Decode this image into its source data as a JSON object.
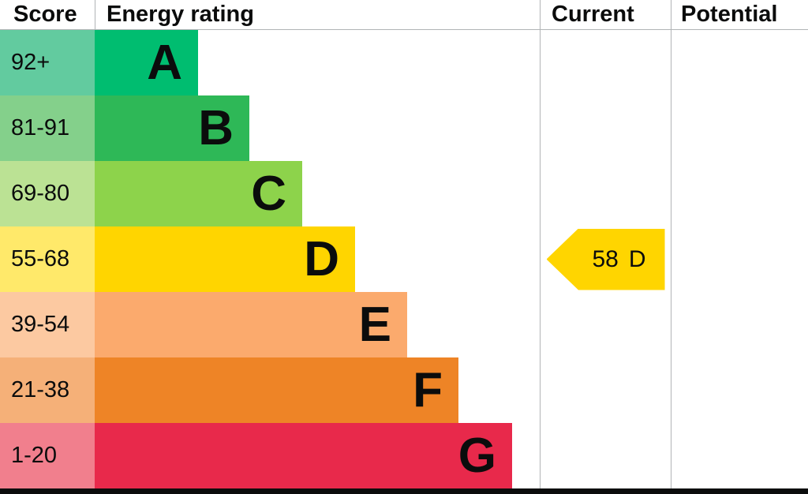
{
  "header": {
    "score": "Score",
    "energy_rating": "Energy rating",
    "current": "Current",
    "potential": "Potential"
  },
  "bands": [
    {
      "score": "92+",
      "letter": "A",
      "color": "#00bd70",
      "tint": "#62cb9f"
    },
    {
      "score": "81-91",
      "letter": "B",
      "color": "#2eb857",
      "tint": "#84d08b"
    },
    {
      "score": "69-80",
      "letter": "C",
      "color": "#8dd34b",
      "tint": "#bbe294"
    },
    {
      "score": "55-68",
      "letter": "D",
      "color": "#ffd500",
      "tint": "#ffe96a"
    },
    {
      "score": "39-54",
      "letter": "E",
      "color": "#fbaa6d",
      "tint": "#fcc9a1"
    },
    {
      "score": "21-38",
      "letter": "F",
      "color": "#ee8426",
      "tint": "#f5b078"
    },
    {
      "score": "1-20",
      "letter": "G",
      "color": "#e8294b",
      "tint": "#f17f8d"
    }
  ],
  "current": {
    "value": "58",
    "letter": "D",
    "color": "#ffd500"
  },
  "colors": {
    "border": "#b1b4b6",
    "baseline": "#0b0c0c",
    "text": "#0b0c0c"
  },
  "chart_data": {
    "type": "table",
    "title": "Energy rating",
    "columns": [
      "Score",
      "Energy rating",
      "Current",
      "Potential"
    ],
    "bands": [
      {
        "band": "A",
        "score_range": "92+"
      },
      {
        "band": "B",
        "score_range": "81-91"
      },
      {
        "band": "C",
        "score_range": "69-80"
      },
      {
        "band": "D",
        "score_range": "55-68"
      },
      {
        "band": "E",
        "score_range": "39-54"
      },
      {
        "band": "F",
        "score_range": "21-38"
      },
      {
        "band": "G",
        "score_range": "1-20"
      }
    ],
    "current_rating": {
      "score": 58,
      "band": "D"
    },
    "potential_rating": null
  }
}
